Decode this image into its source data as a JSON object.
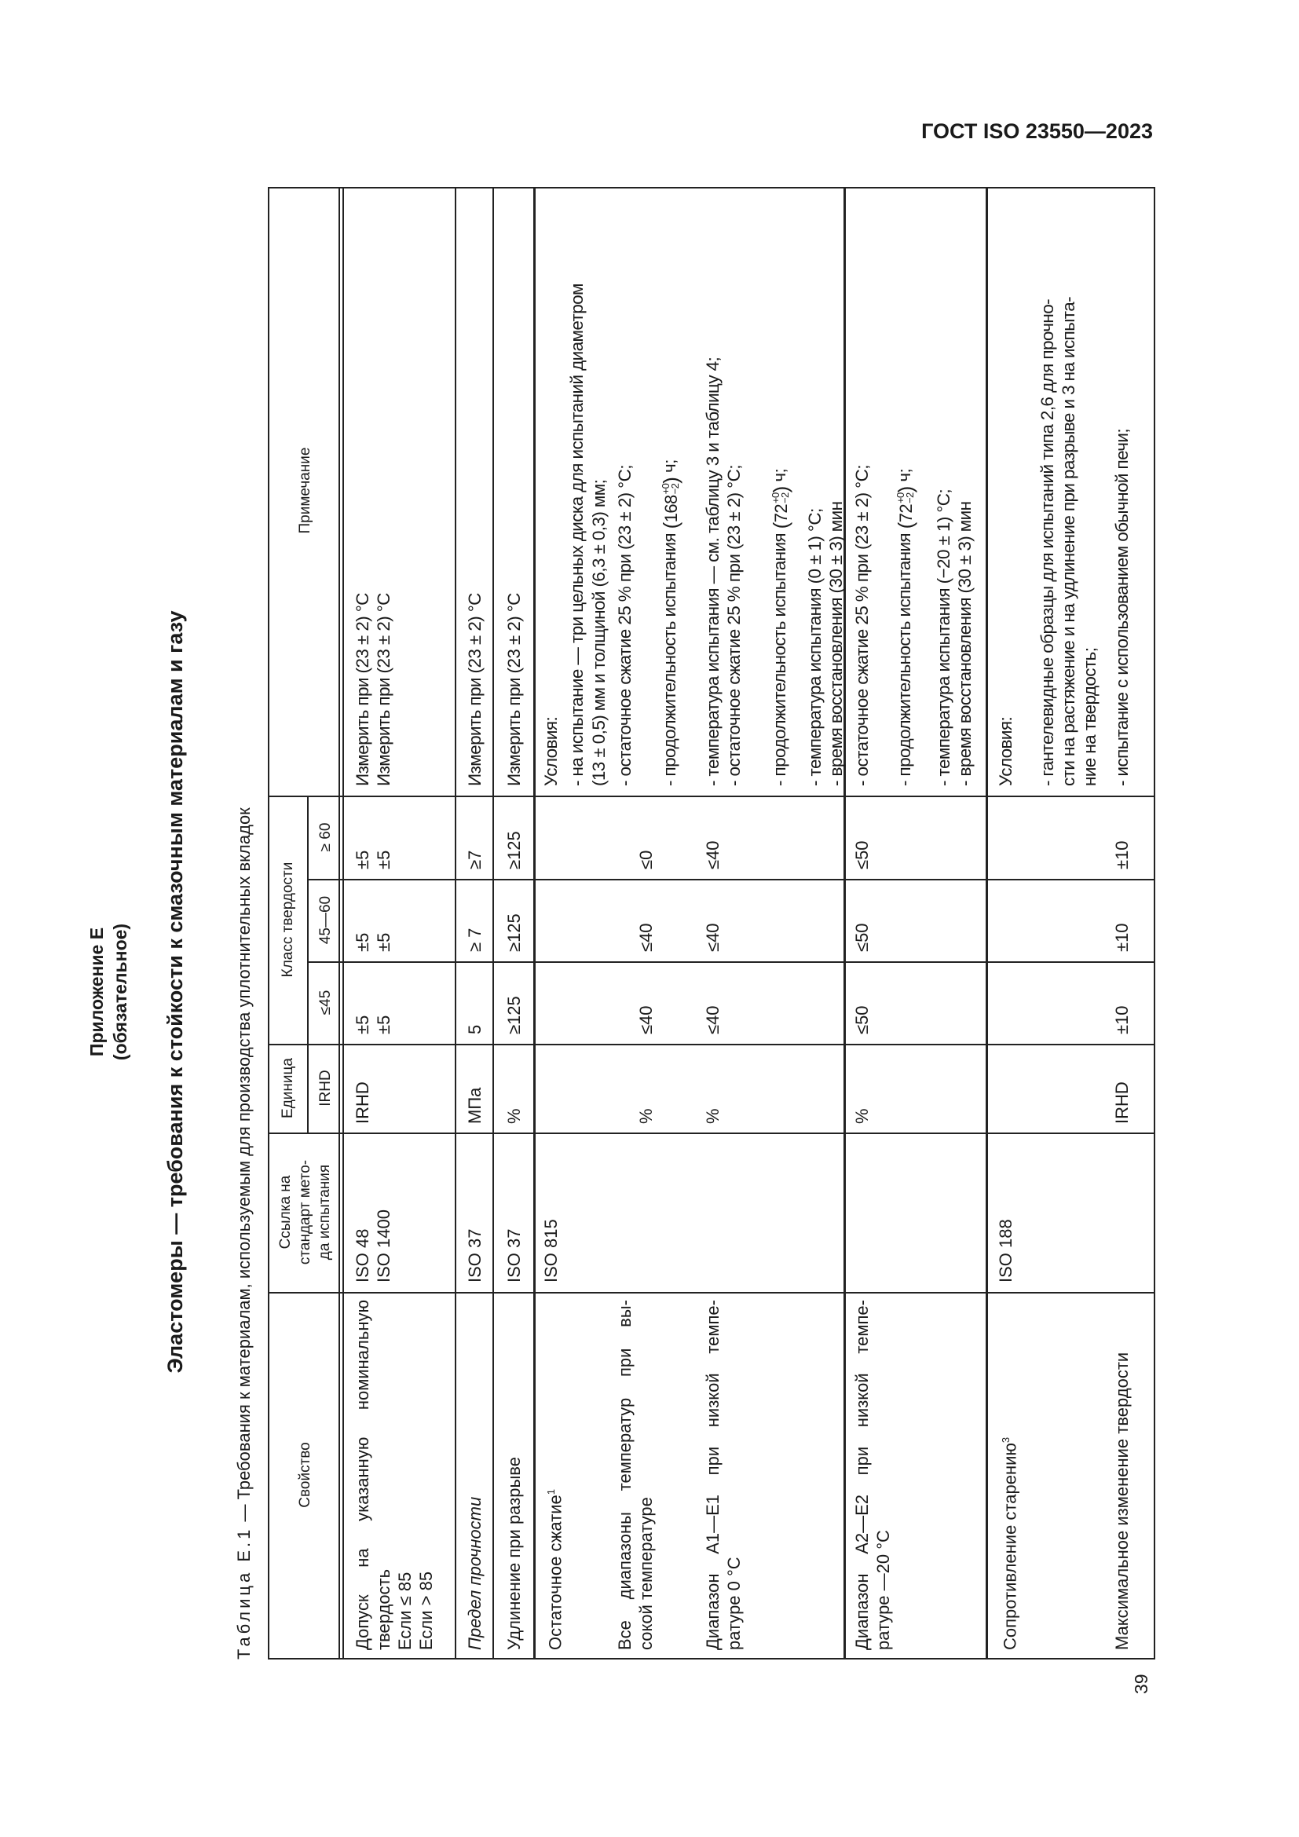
{
  "header": {
    "doc_id": "ГОСТ ISO 23550—2023",
    "page_number": "39"
  },
  "annex": {
    "title": "Приложение Е",
    "status": "(обязательное)",
    "heading": "Эластомеры — требования к стойкости к смазочным материалам и газу"
  },
  "table": {
    "caption_label": "Таблица Е.1",
    "caption_text": " — Требования к материалам, используемым для производства уплотнительных вкладок",
    "columns": {
      "property": "Свойство",
      "method_ref": [
        "Ссылка на",
        "стандарт мето-",
        "да испытания"
      ],
      "unit": "Единица",
      "unit_sub": "IRHD",
      "hardness_class": "Класс твердости",
      "hc_1": "≤45",
      "hc_2": "45—60",
      "hc_3": "≥ 60",
      "note": "Примечание"
    },
    "rows": [
      {
        "property": [
          "Допуск  на  указанную  номинальную",
          "твердость",
          "Если ≤ 85",
          "Если > 85"
        ],
        "method": [
          "ISO 48",
          "ISO 1400"
        ],
        "unit": "IRHD",
        "hc_1": [
          "±5",
          "±5"
        ],
        "hc_2": [
          "±5",
          "±5"
        ],
        "hc_3": [
          "±5",
          "±5"
        ],
        "note": [
          "Измерить при (23 ± 2) °C",
          "Измерить при (23 ± 2) °C"
        ]
      },
      {
        "property": "Предел прочности",
        "method": "ISO 37",
        "unit": "МПа",
        "hc_1": "5",
        "hc_2": "≥ 7",
        "hc_3": "≥7",
        "note": "Измерить при (23 ± 2) °C"
      },
      {
        "property": "Удлинение при разрыве",
        "method": "ISO 37",
        "unit": "%",
        "hc_1": "≥125",
        "hc_2": "≥125",
        "hc_3": "≥125",
        "note": "Измерить при (23 ± 2) °C"
      },
      {
        "property": "Остаточное сжатие",
        "property_sup": "1",
        "method": "ISO 815",
        "sub_all": [
          "Все  диапазоны  температур  при  вы-",
          "сокой температуре"
        ],
        "sub_all_unit": "%",
        "sub_all_values": [
          "≤40",
          "≤40",
          "≤0"
        ],
        "sub_a1": [
          "Диапазон  А1—E1  при  низкой  темпе-",
          "ратуре 0 °C"
        ],
        "sub_a1_unit": "%",
        "sub_a1_values": [
          "≤40",
          "≤40",
          "≤40"
        ],
        "note": {
          "l1": "Условия:",
          "l2": "- на испытание — три цельных диска для испытаний диаметром",
          "l3": "(13 ± 0,5) мм и толщиной (6,3 ± 0,3) мм;",
          "l4": "- остаточное сжатие 25 % при (23 ± 2) °C;",
          "l5": {
            "text": "- продолжительность испытания ",
            "value": "168",
            "sup": "+0",
            "sub": "−2",
            "unit": " ч;"
          },
          "l6": "- температура испытания — см. таблицу 3 и таблицу 4;",
          "l7": "- остаточное сжатие 25 % при (23 ± 2) °C;",
          "l8": {
            "text": "- продолжительность испытания ",
            "value": "72",
            "sup": "+0",
            "sub": "−2",
            "unit": " ч;"
          },
          "l9": "- температура испытания (0 ± 1) °C;",
          "l10": "- время восстановления (30 ± 3) мин"
        }
      },
      {
        "property": [
          "Диапазон  А2—E2  при  низкой  темпе-",
          "ратуре —20 °C"
        ],
        "unit": "%",
        "values": [
          "≤50",
          "≤50",
          "≤50"
        ],
        "note": {
          "l1": "- остаточное сжатие 25 % при (23 ± 2) °C;",
          "l2": {
            "text": "- продолжительность испытания ",
            "value": "72",
            "sup": "+0",
            "sub": "−2",
            "unit": " ч;"
          },
          "l3": "- температура испытания (−20 ± 1) °C;",
          "l4": "- время восстановления (30 ± 3) мин"
        }
      },
      {
        "property": "Сопротивление старению",
        "property_sup": "3",
        "method": "ISO 188",
        "sub_property": "Максимальное изменение твердости",
        "sub_unit": "IRHD",
        "sub_values": [
          "±10",
          "±10",
          "±10"
        ],
        "note": {
          "l1": "Условия:",
          "l2": "- гантелевидные образцы для испытаний типа 2,6 для прочно-",
          "l3": "сти на растяжение и на удлинение при разрыве и 3 на испыта-",
          "l4": "ние на твердость;",
          "l5": "- испытание с использованием обычной печи;"
        }
      }
    ]
  }
}
